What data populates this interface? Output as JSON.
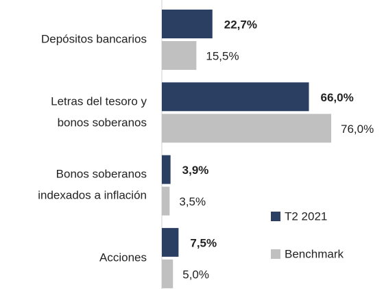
{
  "chart_data": {
    "type": "bar",
    "orientation": "horizontal",
    "categories": [
      [
        "Depósitos bancarios"
      ],
      [
        "Letras del tesoro y",
        "bonos soberanos"
      ],
      [
        "Bonos soberanos",
        "indexados a inflación"
      ],
      [
        "Acciones"
      ]
    ],
    "series": [
      {
        "name": "T2 2021",
        "color": "#2b3f63",
        "values": [
          22.7,
          66.0,
          3.9,
          7.5
        ],
        "value_labels": [
          "22,7%",
          "66,0%",
          "3,9%",
          "7,5%"
        ]
      },
      {
        "name": "Benchmark",
        "color": "#c0c0c0",
        "values": [
          15.5,
          76.0,
          3.5,
          5.0
        ],
        "value_labels": [
          "15,5%",
          "76,0%",
          "3,5%",
          "5,0%"
        ]
      }
    ],
    "legend": "lower right"
  }
}
